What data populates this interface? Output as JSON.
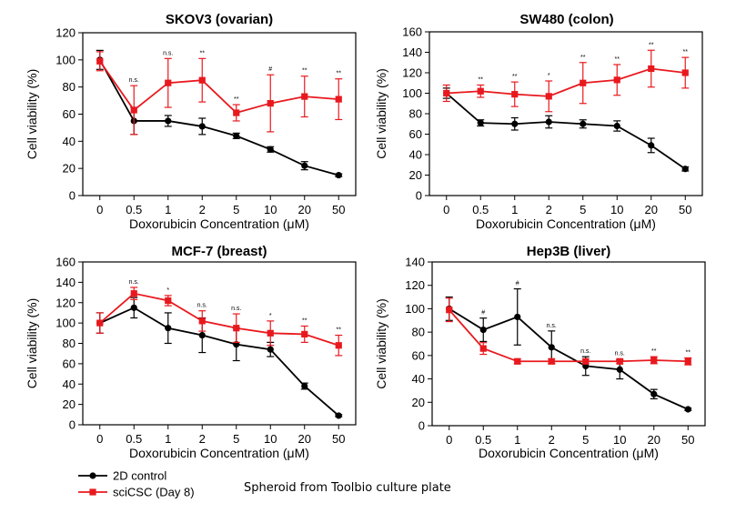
{
  "chart_data": [
    {
      "type": "line",
      "title": "SKOV3 (ovarian)",
      "xlabel": "Doxorubicin Concentration (μM)",
      "ylabel": "Cell viability (%)",
      "categories": [
        "0",
        "0.5",
        "1",
        "2",
        "5",
        "10",
        "20",
        "50"
      ],
      "ylim": [
        0,
        120
      ],
      "yticks": [
        0,
        20,
        40,
        60,
        80,
        100,
        120
      ],
      "series": [
        {
          "name": "2D control",
          "color": "#000000",
          "marker": "circle",
          "values": [
            100,
            55,
            55,
            51,
            44,
            34,
            22,
            15
          ],
          "errors": [
            7,
            10,
            4,
            6,
            2,
            2,
            3,
            1
          ]
        },
        {
          "name": "sciCSC (Day 8)",
          "color": "#e8191e",
          "marker": "square",
          "values": [
            99,
            63,
            83,
            85,
            61,
            68,
            73,
            71
          ],
          "errors": [
            7,
            18,
            18,
            16,
            6,
            21,
            15,
            15
          ]
        }
      ],
      "significance": [
        "",
        "n.s.",
        "n.s.",
        "**",
        "**",
        "#",
        "**",
        "**"
      ]
    },
    {
      "type": "line",
      "title": "SW480 (colon)",
      "xlabel": "Doxorubicin Concentration (μM)",
      "ylabel": "Cell viability (%)",
      "categories": [
        "0",
        "0.5",
        "1",
        "2",
        "5",
        "10",
        "20",
        "50"
      ],
      "ylim": [
        0,
        160
      ],
      "yticks": [
        0,
        20,
        40,
        60,
        80,
        100,
        120,
        140,
        160
      ],
      "series": [
        {
          "name": "2D control",
          "color": "#000000",
          "marker": "circle",
          "values": [
            100,
            71,
            70,
            72,
            70,
            68,
            49,
            26
          ],
          "errors": [
            5,
            3,
            6,
            6,
            4,
            5,
            7,
            2
          ]
        },
        {
          "name": "sciCSC (Day 8)",
          "color": "#e8191e",
          "marker": "square",
          "values": [
            100,
            102,
            99,
            97,
            110,
            113,
            124,
            120
          ],
          "errors": [
            8,
            6,
            12,
            15,
            20,
            15,
            18,
            15
          ]
        }
      ],
      "significance": [
        "",
        "**",
        "**",
        "*",
        "**",
        "**",
        "**",
        "**"
      ]
    },
    {
      "type": "line",
      "title": "MCF-7 (breast)",
      "xlabel": "Doxorubicin Concentration (μM)",
      "ylabel": "Cell viability (%)",
      "categories": [
        "0",
        "0.5",
        "1",
        "2",
        "5",
        "10",
        "20",
        "50"
      ],
      "ylim": [
        0,
        160
      ],
      "yticks": [
        0,
        20,
        40,
        60,
        80,
        100,
        120,
        140,
        160
      ],
      "series": [
        {
          "name": "2D control",
          "color": "#000000",
          "marker": "circle",
          "values": [
            100,
            115,
            95,
            88,
            79,
            74,
            38,
            9
          ],
          "errors": [
            10,
            10,
            15,
            17,
            16,
            7,
            3,
            1
          ]
        },
        {
          "name": "sciCSC (Day 8)",
          "color": "#e8191e",
          "marker": "square",
          "values": [
            100,
            129,
            122,
            102,
            95,
            90,
            89,
            78
          ],
          "errors": [
            10,
            6,
            5,
            10,
            14,
            12,
            8,
            10
          ]
        }
      ],
      "significance": [
        "",
        "n.s.",
        "*",
        "n.s.",
        "n.s.",
        "*",
        "**",
        "**"
      ]
    },
    {
      "type": "line",
      "title": "Hep3B (liver)",
      "xlabel": "Doxorubicin Concentration (μM)",
      "ylabel": "Cell viability (%)",
      "categories": [
        "0",
        "0.5",
        "1",
        "2",
        "5",
        "10",
        "20",
        "50"
      ],
      "ylim": [
        0,
        140
      ],
      "yticks": [
        0,
        20,
        40,
        60,
        80,
        100,
        120,
        140
      ],
      "series": [
        {
          "name": "2D control",
          "color": "#000000",
          "marker": "circle",
          "values": [
            100,
            82,
            93,
            67,
            51,
            48,
            27,
            14
          ],
          "errors": [
            10,
            10,
            24,
            14,
            8,
            8,
            4,
            1
          ]
        },
        {
          "name": "sciCSC (Day 8)",
          "color": "#e8191e",
          "marker": "square",
          "values": [
            99,
            66,
            55,
            55,
            55,
            55,
            56,
            55
          ],
          "errors": [
            10,
            5,
            2,
            2,
            2,
            2,
            3,
            3
          ]
        }
      ],
      "significance": [
        "",
        "#",
        "#",
        "n.s.",
        "n.s.",
        "n.s.",
        "**",
        "**"
      ]
    }
  ],
  "legend": {
    "placement": "bottom-left",
    "items": [
      {
        "label": "2D control",
        "color": "#000000",
        "marker": "circle"
      },
      {
        "label": "sciCSC (Day 8)",
        "color": "#e8191e",
        "marker": "square"
      }
    ]
  },
  "caption": "Spheroid from Toolbio culture plate"
}
